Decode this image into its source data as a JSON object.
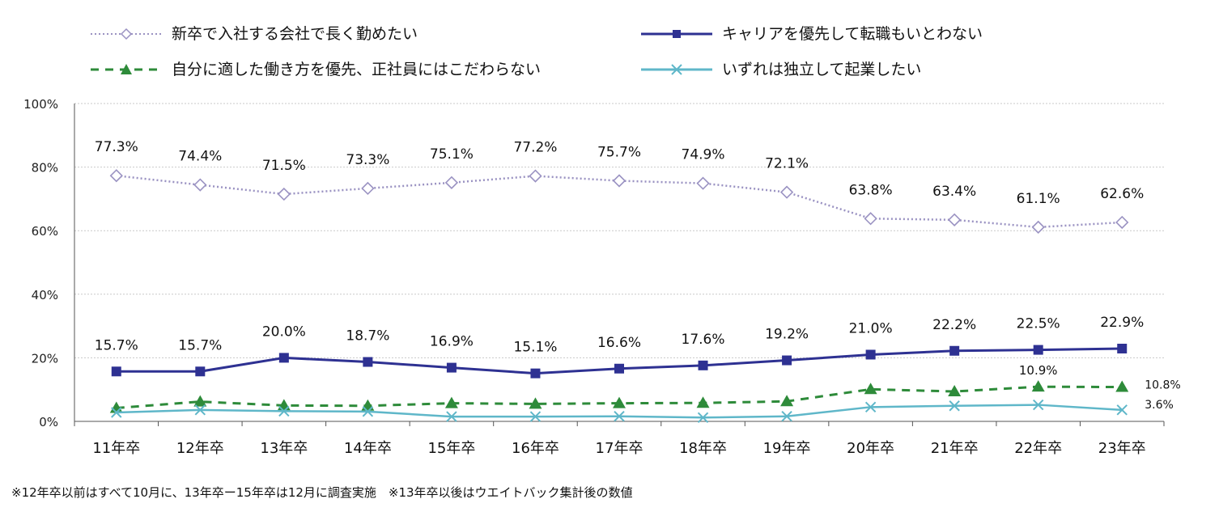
{
  "chart_data": {
    "type": "line",
    "title": "",
    "xlabel": "",
    "ylabel": "",
    "ylim": [
      0,
      100
    ],
    "yticks": [
      "0%",
      "20%",
      "40%",
      "60%",
      "80%",
      "100%"
    ],
    "ytick_values": [
      0,
      20,
      40,
      60,
      80,
      100
    ],
    "grid": true,
    "legend_position": "top",
    "categories": [
      "11年卒",
      "12年卒",
      "13年卒",
      "14年卒",
      "15年卒",
      "16年卒",
      "17年卒",
      "18年卒",
      "19年卒",
      "20年卒",
      "21年卒",
      "22年卒",
      "23年卒"
    ],
    "series": [
      {
        "name": "新卒で入社する会社で長く勤めたい",
        "values": [
          77.3,
          74.4,
          71.5,
          73.3,
          75.1,
          77.2,
          75.7,
          74.9,
          72.1,
          63.8,
          63.4,
          61.1,
          62.6
        ],
        "labels": [
          "77.3%",
          "74.4%",
          "71.5%",
          "73.3%",
          "75.1%",
          "77.2%",
          "75.7%",
          "74.9%",
          "72.1%",
          "63.8%",
          "63.4%",
          "61.1%",
          "62.6%"
        ],
        "color": "#9a92c2",
        "marker": "diamond",
        "line_style": "dotted"
      },
      {
        "name": "キャリアを優先して転職もいとわない",
        "values": [
          15.7,
          15.7,
          20.0,
          18.7,
          16.9,
          15.1,
          16.6,
          17.6,
          19.2,
          21.0,
          22.2,
          22.5,
          22.9
        ],
        "labels": [
          "15.7%",
          "15.7%",
          "20.0%",
          "18.7%",
          "16.9%",
          "15.1%",
          "16.6%",
          "17.6%",
          "19.2%",
          "21.0%",
          "22.2%",
          "22.5%",
          "22.9%"
        ],
        "color": "#2e3192",
        "marker": "square",
        "line_style": "solid"
      },
      {
        "name": "自分に適した働き方を優先、正社員にはこだわらない",
        "values": [
          4.2,
          6.2,
          5.0,
          4.9,
          5.7,
          5.5,
          5.7,
          5.8,
          6.3,
          10.1,
          9.4,
          10.9,
          10.8
        ],
        "labels": [
          "",
          "",
          "",
          "",
          "",
          "",
          "",
          "",
          "",
          "",
          "",
          "10.9%",
          "10.8%"
        ],
        "color": "#2e8b3a",
        "marker": "triangle",
        "line_style": "dashed"
      },
      {
        "name": "いずれは独立して起業したい",
        "values": [
          2.8,
          3.6,
          3.2,
          3.1,
          1.5,
          1.5,
          1.6,
          1.2,
          1.6,
          4.5,
          4.9,
          5.2,
          3.6
        ],
        "labels": [
          "",
          "",
          "",
          "",
          "",
          "",
          "",
          "",
          "",
          "",
          "",
          "",
          "3.6%"
        ],
        "color": "#5fb7c9",
        "marker": "x",
        "line_style": "solid"
      }
    ]
  },
  "footnote": "※12年卒以前はすべて10月に、13年卒ー15年卒は12月に調査実施　※13年卒以後はウエイトバック集計後の数値"
}
